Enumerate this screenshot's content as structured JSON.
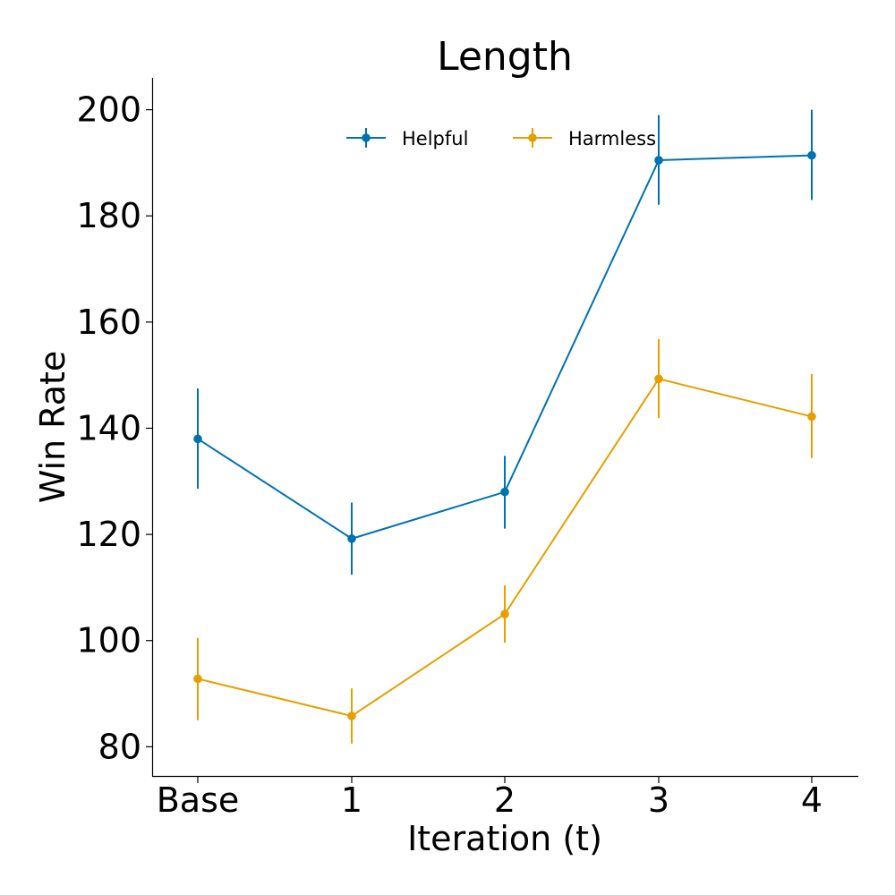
{
  "chart_data": {
    "type": "line",
    "title": "Length",
    "xlabel": "Iteration (t)",
    "ylabel": "Win Rate",
    "categories": [
      "Base",
      "1",
      "2",
      "3",
      "4"
    ],
    "ylim": [
      74.5,
      206
    ],
    "yticks": [
      80,
      100,
      120,
      140,
      160,
      180,
      200
    ],
    "grid": false,
    "legend_position": "top-center",
    "series": [
      {
        "name": "Helpful",
        "color": "#0072B2",
        "values": [
          138.0,
          119.2,
          128.0,
          190.5,
          191.4
        ],
        "error_low": [
          128.6,
          112.4,
          121.1,
          182.1,
          183.0
        ],
        "error_high": [
          147.5,
          126.0,
          134.8,
          199.0,
          200.0
        ]
      },
      {
        "name": "Harmless",
        "color": "#E69F00",
        "values": [
          92.8,
          85.8,
          105.0,
          149.3,
          142.2
        ],
        "error_low": [
          85.0,
          80.6,
          99.6,
          141.9,
          134.4
        ],
        "error_high": [
          100.5,
          91.0,
          110.4,
          156.8,
          150.2
        ]
      }
    ]
  }
}
